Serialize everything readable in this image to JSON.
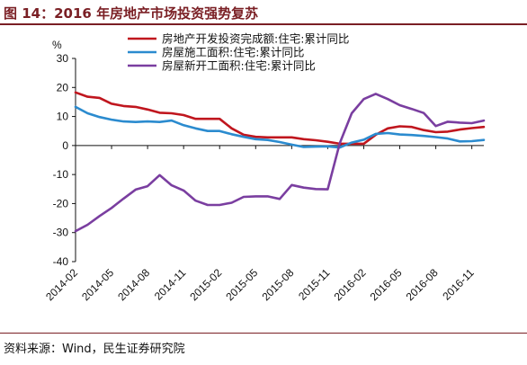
{
  "figure": {
    "title": "图 14：2016 年房地产市场投资强势复苏",
    "source": "资料来源：Wind，民生证券研究院"
  },
  "colors": {
    "title": "#7a1f24",
    "series_red": "#c0161e",
    "series_blue": "#2b8bcf",
    "series_purple": "#7a3ea0"
  },
  "chart_data": {
    "type": "line",
    "unit": "%",
    "ylim": [
      -40,
      30
    ],
    "yticks": [
      30,
      20,
      10,
      0,
      -10,
      -20,
      -30,
      -40
    ],
    "xtick_labels": [
      "2014-02",
      "2014-05",
      "2014-08",
      "2014-11",
      "2015-02",
      "2015-05",
      "2015-08",
      "2015-11",
      "2016-02",
      "2016-05",
      "2016-08",
      "2016-11"
    ],
    "x": [
      "2014-02",
      "2014-03",
      "2014-04",
      "2014-05",
      "2014-06",
      "2014-07",
      "2014-08",
      "2014-09",
      "2014-10",
      "2014-11",
      "2014-12",
      "2015-01",
      "2015-02",
      "2015-03",
      "2015-04",
      "2015-05",
      "2015-06",
      "2015-07",
      "2015-08",
      "2015-09",
      "2015-10",
      "2015-11",
      "2015-12",
      "2016-01",
      "2016-02",
      "2016-03",
      "2016-04",
      "2016-05",
      "2016-06",
      "2016-07",
      "2016-08",
      "2016-09",
      "2016-10",
      "2016-11",
      "2016-12"
    ],
    "grid": false,
    "legend_position": "top",
    "series": [
      {
        "name": "房地产开发投资完成额:住宅:累计同比",
        "color_key": "series_red",
        "values": [
          18.3,
          16.8,
          16.4,
          14.4,
          13.6,
          13.3,
          12.4,
          11.3,
          11.1,
          10.5,
          9.2,
          9.2,
          9.2,
          5.9,
          3.7,
          3.0,
          2.8,
          2.8,
          2.8,
          2.2,
          1.8,
          1.3,
          0.6,
          0.6,
          0.6,
          3.7,
          5.9,
          6.6,
          6.4,
          5.3,
          4.6,
          4.8,
          5.5,
          6.0,
          6.4
        ]
      },
      {
        "name": "房屋施工面积:住宅:累计同比",
        "color_key": "series_blue",
        "values": [
          13.3,
          11.1,
          9.8,
          8.9,
          8.3,
          8.1,
          8.3,
          8.1,
          8.6,
          7.0,
          5.9,
          5.0,
          5.0,
          3.9,
          3.0,
          2.2,
          1.9,
          1.2,
          0.3,
          -0.5,
          -0.4,
          -0.3,
          -0.7,
          1.0,
          2.0,
          4.0,
          4.3,
          3.8,
          3.6,
          3.3,
          2.9,
          2.4,
          1.4,
          1.5,
          1.9
        ]
      },
      {
        "name": "房屋新开工面积:住宅:累计同比",
        "color_key": "series_purple",
        "values": [
          -29.5,
          -27.3,
          -24.3,
          -21.5,
          -18.3,
          -15.2,
          -14.0,
          -10.2,
          -13.7,
          -15.5,
          -19.0,
          -20.5,
          -20.5,
          -19.7,
          -17.7,
          -17.5,
          -17.5,
          -18.4,
          -13.6,
          -14.5,
          -15.0,
          -15.1,
          0.8,
          11.1,
          16.0,
          17.8,
          16.0,
          13.9,
          12.6,
          11.2,
          6.7,
          8.2,
          7.9,
          7.7,
          8.6
        ]
      }
    ]
  }
}
